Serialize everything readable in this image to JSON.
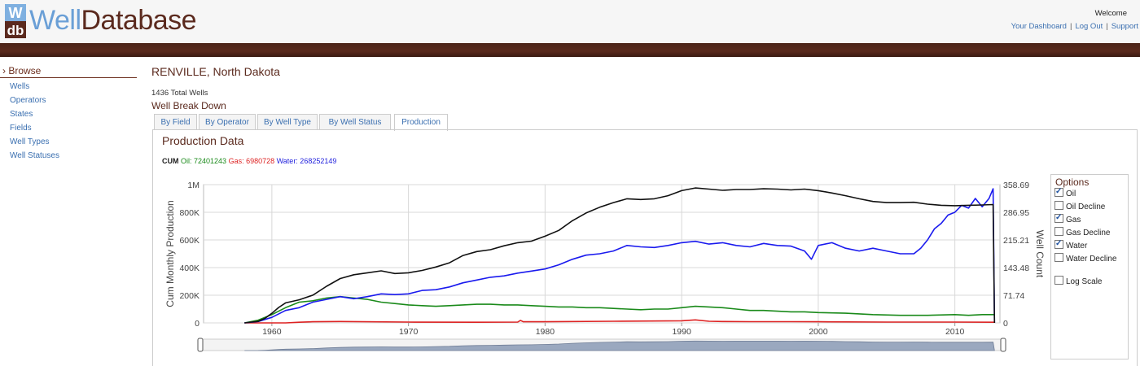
{
  "header": {
    "logo_letters": "Wdb",
    "logo_well": "Well",
    "logo_database": "Database",
    "welcome": "Welcome",
    "links": [
      "Your Dashboard",
      "Log Out",
      "Support"
    ]
  },
  "sidebar": {
    "browse_label": "› Browse",
    "items": [
      "Wells",
      "Operators",
      "States",
      "Fields",
      "Well Types",
      "Well Statuses"
    ]
  },
  "main": {
    "title": "RENVILLE, North Dakota",
    "total_wells": "1436 Total Wells",
    "breakdown_title": "Well Break Down",
    "tabs": [
      "By Field",
      "By Operator",
      "By Well Type",
      "By Well Status",
      "Production"
    ],
    "active_tab": "Production",
    "production_title": "Production Data",
    "cum": {
      "label": "CUM",
      "oil": "Oil: 72401243",
      "gas": "Gas: 6980728",
      "water": "Water: 268252149"
    }
  },
  "options": {
    "title": "Options",
    "items": [
      {
        "label": "Oil",
        "checked": true
      },
      {
        "label": "Oil Decline",
        "checked": false
      },
      {
        "label": "Gas",
        "checked": true
      },
      {
        "label": "Gas Decline",
        "checked": false
      },
      {
        "label": "Water",
        "checked": true
      },
      {
        "label": "Water Decline",
        "checked": false
      },
      {
        "label": "Log Scale",
        "checked": false
      }
    ]
  },
  "colors": {
    "oil": "#1a8a1a",
    "gas": "#dd2222",
    "water": "#1a1aee",
    "well_count": "#111111",
    "brand_brown": "#5b2a1e",
    "link_blue": "#3a6fb0"
  },
  "chart_data": {
    "type": "line",
    "ylabel": "Cum Monthly Production",
    "y2label": "Well Count",
    "y_ticks": [
      "0",
      "200K",
      "400K",
      "600K",
      "800K",
      "1M"
    ],
    "y2_ticks": [
      "0",
      "71.74",
      "143.48",
      "215.21",
      "286.95",
      "358.69"
    ],
    "x_ticks": [
      "1960",
      "1970",
      "1980",
      "1990",
      "2000",
      "2010"
    ],
    "xlim": [
      1955,
      2013.3
    ],
    "ylim": [
      0,
      1000000
    ],
    "y2lim": [
      0,
      358.69
    ],
    "grid": true,
    "series": [
      {
        "name": "Well Count",
        "axis": "right",
        "color": "#111111",
        "x": [
          1958.0,
          1959.0,
          1959.5,
          1960.0,
          1960.5,
          1961.0,
          1962.0,
          1963.0,
          1964.0,
          1965.0,
          1966.0,
          1967.0,
          1968.0,
          1969.0,
          1970.0,
          1971.0,
          1972.0,
          1973.0,
          1974.0,
          1975.0,
          1976.0,
          1977.0,
          1978.0,
          1979.0,
          1980.0,
          1981.0,
          1982.0,
          1983.0,
          1984.0,
          1985.0,
          1986.0,
          1987.0,
          1988.0,
          1989.0,
          1990.0,
          1991.0,
          1992.0,
          1993.0,
          1994.0,
          1995.0,
          1996.0,
          1997.0,
          1998.0,
          1999.0,
          2000.0,
          2001.0,
          2002.0,
          2003.0,
          2004.0,
          2005.0,
          2006.0,
          2007.0,
          2008.0,
          2009.0,
          2010.0,
          2011.0,
          2012.0,
          2012.8,
          2012.9
        ],
        "y": [
          0,
          4,
          12,
          25,
          40,
          52,
          60,
          72,
          95,
          115,
          125,
          130,
          135,
          128,
          130,
          136,
          145,
          156,
          175,
          185,
          190,
          200,
          208,
          212,
          225,
          240,
          265,
          285,
          300,
          312,
          322,
          320,
          322,
          330,
          343,
          350,
          347,
          344,
          346,
          346,
          348,
          347,
          345,
          347,
          343,
          337,
          330,
          322,
          315,
          312,
          312,
          313,
          308,
          305,
          304,
          305,
          306,
          307,
          0
        ]
      },
      {
        "name": "Water",
        "axis": "left",
        "color": "#1a1aee",
        "x": [
          1958.0,
          1959.0,
          1960.0,
          1961.0,
          1962.0,
          1963.0,
          1964.0,
          1965.0,
          1966.0,
          1967.0,
          1968.0,
          1969.0,
          1970.0,
          1971.0,
          1972.0,
          1973.0,
          1974.0,
          1975.0,
          1976.0,
          1977.0,
          1978.0,
          1979.0,
          1980.0,
          1981.0,
          1982.0,
          1983.0,
          1984.0,
          1985.0,
          1986.0,
          1987.0,
          1988.0,
          1989.0,
          1990.0,
          1991.0,
          1992.0,
          1993.0,
          1994.0,
          1995.0,
          1996.0,
          1997.0,
          1998.0,
          1999.0,
          1999.5,
          2000.0,
          2001.0,
          2002.0,
          2003.0,
          2004.0,
          2005.0,
          2006.0,
          2007.0,
          2007.5,
          2008.0,
          2008.5,
          2009.0,
          2009.5,
          2010.0,
          2010.5,
          2011.0,
          2011.5,
          2012.0,
          2012.5,
          2012.8,
          2012.9
        ],
        "y": [
          0,
          10,
          40,
          90,
          110,
          150,
          170,
          190,
          175,
          190,
          210,
          205,
          210,
          235,
          240,
          260,
          290,
          310,
          330,
          340,
          360,
          375,
          390,
          420,
          460,
          490,
          500,
          520,
          560,
          550,
          545,
          560,
          580,
          590,
          570,
          580,
          560,
          550,
          575,
          560,
          555,
          520,
          460,
          560,
          580,
          540,
          520,
          540,
          520,
          500,
          500,
          540,
          600,
          680,
          720,
          780,
          800,
          850,
          830,
          900,
          840,
          900,
          970,
          0
        ]
      },
      {
        "name": "Oil",
        "axis": "left",
        "color": "#1a8a1a",
        "x": [
          1958.0,
          1959.0,
          1960.0,
          1961.0,
          1962.0,
          1963.0,
          1964.0,
          1965.0,
          1966.0,
          1967.0,
          1968.0,
          1969.0,
          1970.0,
          1971.0,
          1972.0,
          1973.0,
          1974.0,
          1975.0,
          1976.0,
          1977.0,
          1978.0,
          1979.0,
          1980.0,
          1981.0,
          1982.0,
          1983.0,
          1984.0,
          1985.0,
          1986.0,
          1987.0,
          1988.0,
          1989.0,
          1990.0,
          1991.0,
          1992.0,
          1993.0,
          1994.0,
          1995.0,
          1996.0,
          1997.0,
          1998.0,
          1999.0,
          2000.0,
          2002.0,
          2004.0,
          2006.0,
          2008.0,
          2010.0,
          2011.0,
          2012.0,
          2012.9
        ],
        "y": [
          0,
          20,
          60,
          110,
          150,
          160,
          180,
          190,
          180,
          170,
          150,
          140,
          130,
          125,
          120,
          125,
          130,
          135,
          135,
          130,
          130,
          125,
          120,
          115,
          115,
          110,
          110,
          105,
          100,
          95,
          100,
          100,
          110,
          120,
          115,
          110,
          100,
          90,
          90,
          85,
          80,
          80,
          75,
          70,
          60,
          55,
          55,
          60,
          55,
          60,
          60
        ]
      },
      {
        "name": "Gas",
        "axis": "left",
        "color": "#dd2222",
        "x": [
          1958.0,
          1961.0,
          1962.0,
          1963.0,
          1965.0,
          1970.0,
          1975.0,
          1978.0,
          1978.2,
          1978.4,
          1980.0,
          1985.0,
          1990.0,
          1991.0,
          1992.0,
          1993.0,
          1995.0,
          1998.0,
          2000.0,
          2005.0,
          2010.0,
          2012.9
        ],
        "y": [
          0,
          0,
          5,
          8,
          10,
          6,
          5,
          6,
          18,
          8,
          8,
          12,
          15,
          22,
          12,
          10,
          9,
          9,
          8,
          6,
          6,
          5
        ]
      }
    ]
  }
}
